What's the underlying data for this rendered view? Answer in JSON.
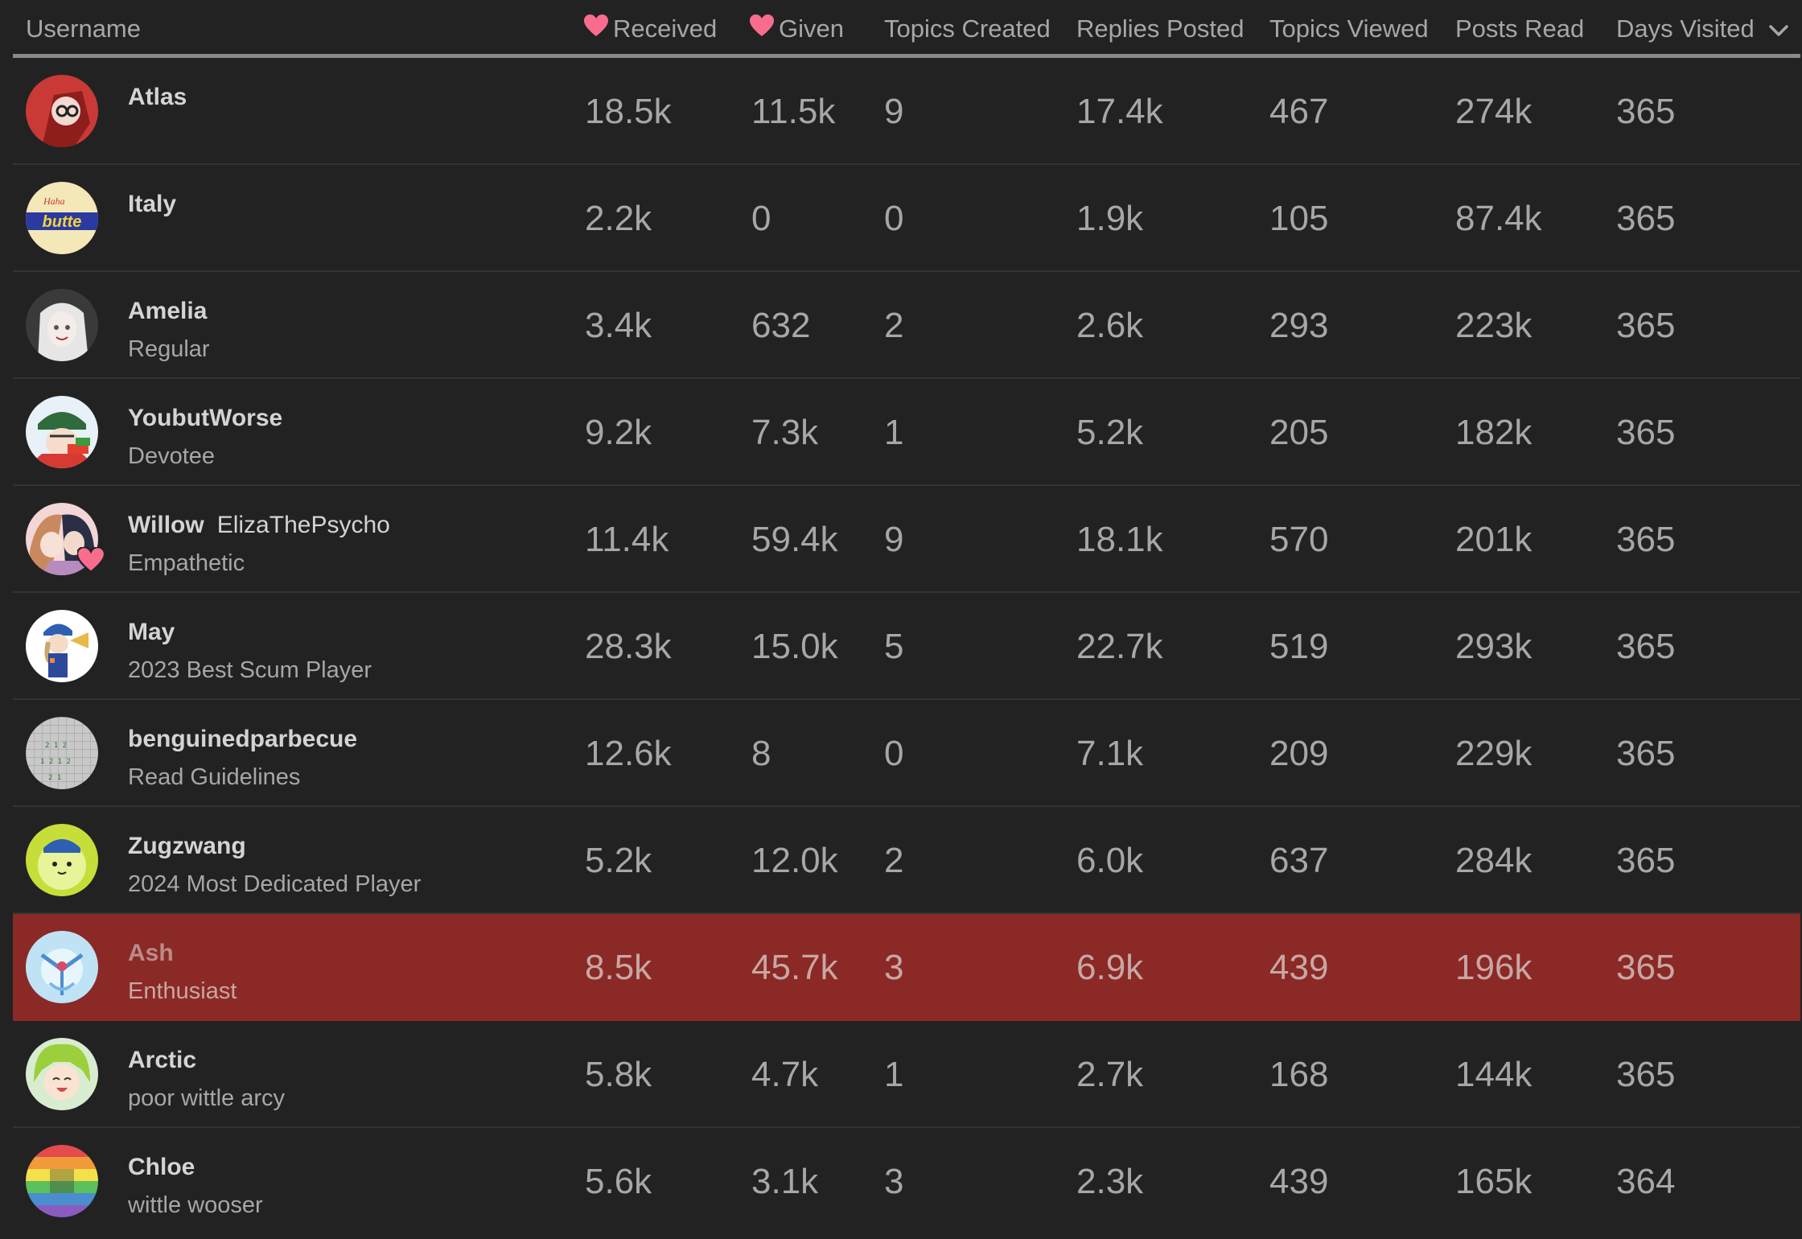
{
  "header": {
    "username": "Username",
    "received": "Received",
    "given": "Given",
    "topics_created": "Topics Created",
    "replies_posted": "Replies Posted",
    "topics_viewed": "Topics Viewed",
    "posts_read": "Posts Read",
    "days_visited": "Days Visited"
  },
  "colors": {
    "background": "#222222",
    "heart": "#fa6c8d",
    "highlight_row": "#8b2927",
    "text": "#a7a7a7"
  },
  "rows": [
    {
      "username": "Atlas",
      "alt_name": "",
      "title": "",
      "received": "18.5k",
      "given": "11.5k",
      "topics_created": "9",
      "replies_posted": "17.4k",
      "topics_viewed": "467",
      "posts_read": "274k",
      "days_visited": "365"
    },
    {
      "username": "Italy",
      "alt_name": "",
      "title": "",
      "received": "2.2k",
      "given": "0",
      "topics_created": "0",
      "replies_posted": "1.9k",
      "topics_viewed": "105",
      "posts_read": "87.4k",
      "days_visited": "365"
    },
    {
      "username": "Amelia",
      "alt_name": "",
      "title": "Regular",
      "received": "3.4k",
      "given": "632",
      "topics_created": "2",
      "replies_posted": "2.6k",
      "topics_viewed": "293",
      "posts_read": "223k",
      "days_visited": "365"
    },
    {
      "username": "YoubutWorse",
      "alt_name": "",
      "title": "Devotee",
      "received": "9.2k",
      "given": "7.3k",
      "topics_created": "1",
      "replies_posted": "5.2k",
      "topics_viewed": "205",
      "posts_read": "182k",
      "days_visited": "365"
    },
    {
      "username": "Willow",
      "alt_name": "ElizaThePsycho",
      "title": "Empathetic",
      "received": "11.4k",
      "given": "59.4k",
      "topics_created": "9",
      "replies_posted": "18.1k",
      "topics_viewed": "570",
      "posts_read": "201k",
      "days_visited": "365"
    },
    {
      "username": "May",
      "alt_name": "",
      "title": "2023 Best Scum Player",
      "received": "28.3k",
      "given": "15.0k",
      "topics_created": "5",
      "replies_posted": "22.7k",
      "topics_viewed": "519",
      "posts_read": "293k",
      "days_visited": "365"
    },
    {
      "username": "benguinedparbecue",
      "alt_name": "",
      "title": "Read Guidelines",
      "received": "12.6k",
      "given": "8",
      "topics_created": "0",
      "replies_posted": "7.1k",
      "topics_viewed": "209",
      "posts_read": "229k",
      "days_visited": "365"
    },
    {
      "username": "Zugzwang",
      "alt_name": "",
      "title": "2024 Most Dedicated Player",
      "received": "5.2k",
      "given": "12.0k",
      "topics_created": "2",
      "replies_posted": "6.0k",
      "topics_viewed": "637",
      "posts_read": "284k",
      "days_visited": "365"
    },
    {
      "username": "Ash",
      "alt_name": "",
      "title": "Enthusiast",
      "received": "8.5k",
      "given": "45.7k",
      "topics_created": "3",
      "replies_posted": "6.9k",
      "topics_viewed": "439",
      "posts_read": "196k",
      "days_visited": "365"
    },
    {
      "username": "Arctic",
      "alt_name": "",
      "title": "poor wittle arcy",
      "received": "5.8k",
      "given": "4.7k",
      "topics_created": "1",
      "replies_posted": "2.7k",
      "topics_viewed": "168",
      "posts_read": "144k",
      "days_visited": "365"
    },
    {
      "username": "Chloe",
      "alt_name": "",
      "title": "wittle wooser",
      "received": "5.6k",
      "given": "3.1k",
      "topics_created": "3",
      "replies_posted": "2.3k",
      "topics_viewed": "439",
      "posts_read": "165k",
      "days_visited": "364"
    }
  ]
}
